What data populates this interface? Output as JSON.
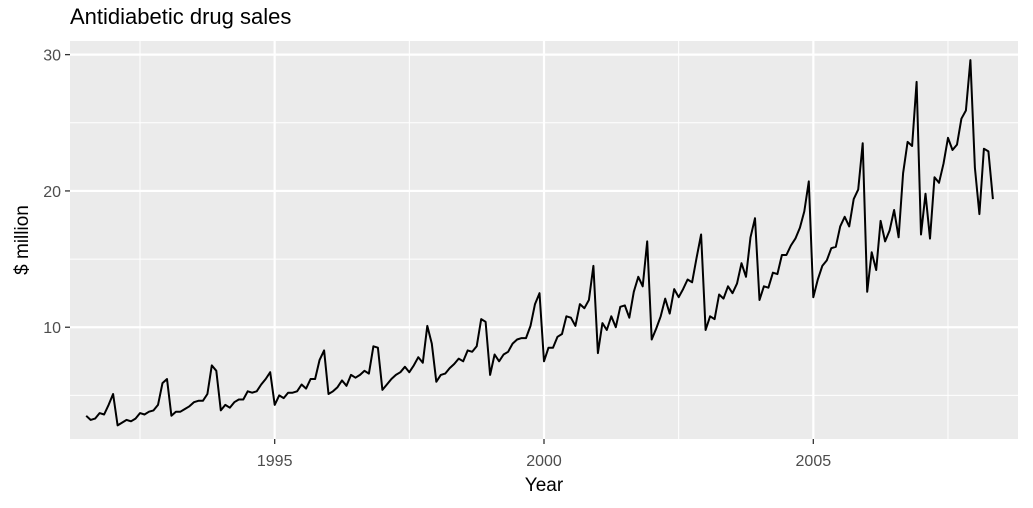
{
  "chart_data": {
    "type": "line",
    "title": "Antidiabetic drug sales",
    "xlabel": "Year",
    "ylabel": "$ million",
    "xlim": [
      1991.2,
      2008.8
    ],
    "ylim": [
      1.8,
      31.0
    ],
    "x_ticks": [
      1995,
      2000,
      2005
    ],
    "x_tick_labels": [
      "1995",
      "2000",
      "2005"
    ],
    "y_ticks": [
      10,
      20,
      30
    ],
    "y_tick_labels": [
      "10",
      "20",
      "30"
    ],
    "grid": true,
    "legend": "none",
    "colors": {
      "panel": "#ebebeb",
      "grid": "#ffffff",
      "line": "#000000"
    },
    "x_start": 1991.5,
    "x_step": 0.0833333333,
    "series": [
      {
        "values": [
          3.5,
          3.2,
          3.3,
          3.7,
          3.6,
          4.3,
          5.1,
          2.8,
          3.0,
          3.2,
          3.1,
          3.3,
          3.7,
          3.6,
          3.8,
          3.9,
          4.3,
          5.9,
          6.2,
          3.5,
          3.8,
          3.8,
          4.0,
          4.2,
          4.5,
          4.6,
          4.6,
          5.1,
          7.2,
          6.8,
          3.9,
          4.3,
          4.1,
          4.5,
          4.7,
          4.7,
          5.3,
          5.2,
          5.3,
          5.8,
          6.2,
          6.7,
          4.3,
          5.0,
          4.8,
          5.2,
          5.2,
          5.3,
          5.8,
          5.5,
          6.2,
          6.2,
          7.6,
          8.3,
          5.1,
          5.3,
          5.6,
          6.1,
          5.7,
          6.5,
          6.3,
          6.5,
          6.8,
          6.6,
          8.6,
          8.5,
          5.4,
          5.8,
          6.2,
          6.5,
          6.7,
          7.1,
          6.7,
          7.2,
          7.8,
          7.4,
          10.1,
          8.8,
          6.0,
          6.5,
          6.6,
          7.0,
          7.3,
          7.7,
          7.5,
          8.3,
          8.2,
          8.6,
          10.6,
          10.4,
          6.5,
          8.0,
          7.5,
          8.0,
          8.2,
          8.8,
          9.1,
          9.2,
          9.2,
          10.1,
          11.7,
          12.5,
          7.5,
          8.5,
          8.5,
          9.3,
          9.5,
          10.8,
          10.7,
          10.1,
          11.7,
          11.4,
          12.0,
          14.5,
          8.1,
          10.3,
          9.8,
          10.8,
          10.0,
          11.5,
          11.6,
          10.7,
          12.6,
          13.7,
          13.0,
          16.3,
          9.1,
          9.9,
          10.8,
          12.1,
          11.0,
          12.8,
          12.2,
          12.8,
          13.5,
          13.3,
          15.1,
          16.8,
          9.8,
          10.8,
          10.6,
          12.4,
          12.1,
          13.0,
          12.5,
          13.2,
          14.7,
          13.7,
          16.6,
          18.0,
          12.0,
          13.0,
          12.9,
          14.0,
          13.9,
          15.3,
          15.3,
          16.0,
          16.5,
          17.3,
          18.5,
          20.7,
          12.2,
          13.5,
          14.5,
          14.9,
          15.8,
          15.9,
          17.4,
          18.1,
          17.4,
          19.4,
          20.1,
          23.5,
          12.6,
          15.5,
          14.2,
          17.8,
          16.3,
          17.1,
          18.6,
          16.6,
          21.3,
          23.6,
          23.3,
          28.0,
          16.8,
          19.8,
          16.5,
          21.0,
          20.6,
          22.0,
          23.9,
          23.0,
          23.4,
          25.3,
          25.9,
          29.6,
          21.7,
          18.3,
          23.1,
          22.9,
          19.4
        ]
      }
    ]
  }
}
